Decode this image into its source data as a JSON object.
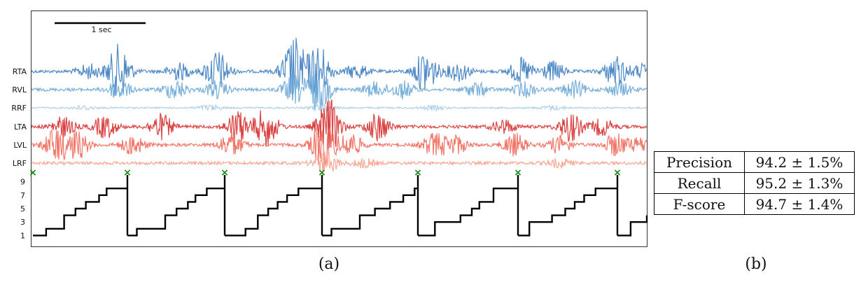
{
  "scale_bar": {
    "label": "1 sec"
  },
  "captions": {
    "left": "(a)",
    "right": "(b)"
  },
  "metrics_table": {
    "rows": [
      {
        "name": "Precision",
        "value": "94.2 ± 1.5%"
      },
      {
        "name": "Recall",
        "value": "95.2 ± 1.3%"
      },
      {
        "name": "F-score",
        "value": "94.7 ± 1.4%"
      }
    ]
  },
  "chart_data": {
    "type": "line",
    "channels": [
      {
        "name": "RTA",
        "color": "#3d7ec1"
      },
      {
        "name": "RVL",
        "color": "#6aa7d6"
      },
      {
        "name": "RRF",
        "color": "#a9cde6"
      },
      {
        "name": "LTA",
        "color": "#d62f2f"
      },
      {
        "name": "LVL",
        "color": "#f0685a"
      },
      {
        "name": "LRF",
        "color": "#f7a08c"
      }
    ],
    "events": {
      "marker": "×",
      "color": "#138a13"
    },
    "phase": {
      "yticks": [
        1,
        3,
        5,
        7,
        9
      ],
      "ylim": [
        0,
        10
      ],
      "color": "#000000",
      "segments": [
        [
          [
            0,
            1
          ],
          [
            0.14,
            2
          ],
          [
            0.33,
            4
          ],
          [
            0.45,
            5
          ],
          [
            0.56,
            6
          ],
          [
            0.7,
            7
          ],
          [
            0.78,
            8
          ],
          [
            1.24,
            9
          ],
          [
            1.4,
            10
          ]
        ],
        [
          [
            0,
            1
          ],
          [
            0.1,
            2
          ],
          [
            0.4,
            4
          ],
          [
            0.52,
            5
          ],
          [
            0.64,
            6
          ],
          [
            0.72,
            7
          ],
          [
            0.84,
            8
          ],
          [
            1.24,
            9
          ],
          [
            1.38,
            10
          ]
        ],
        [
          [
            0,
            1
          ],
          [
            0.22,
            2
          ],
          [
            0.35,
            4
          ],
          [
            0.46,
            5
          ],
          [
            0.56,
            6
          ],
          [
            0.66,
            7
          ],
          [
            0.78,
            8
          ],
          [
            1.26,
            9
          ],
          [
            1.38,
            10
          ]
        ],
        [
          [
            0,
            1
          ],
          [
            0.1,
            2
          ],
          [
            0.4,
            4
          ],
          [
            0.56,
            5
          ],
          [
            0.72,
            6
          ],
          [
            0.86,
            7
          ],
          [
            0.98,
            8
          ],
          [
            1.14,
            9
          ],
          [
            1.32,
            10
          ]
        ],
        [
          [
            0,
            1
          ],
          [
            0.18,
            3
          ],
          [
            0.45,
            4
          ],
          [
            0.57,
            5
          ],
          [
            0.65,
            6
          ],
          [
            0.8,
            8
          ],
          [
            1.22,
            9
          ],
          [
            1.4,
            10
          ]
        ],
        [
          [
            0,
            1
          ],
          [
            0.12,
            3
          ],
          [
            0.36,
            4
          ],
          [
            0.5,
            5
          ],
          [
            0.6,
            6
          ],
          [
            0.7,
            7
          ],
          [
            0.82,
            8
          ],
          [
            1.16,
            9
          ],
          [
            1.3,
            10
          ]
        ],
        [
          [
            0,
            1
          ],
          [
            0.14,
            3
          ],
          [
            0.5,
            4
          ]
        ]
      ]
    }
  }
}
